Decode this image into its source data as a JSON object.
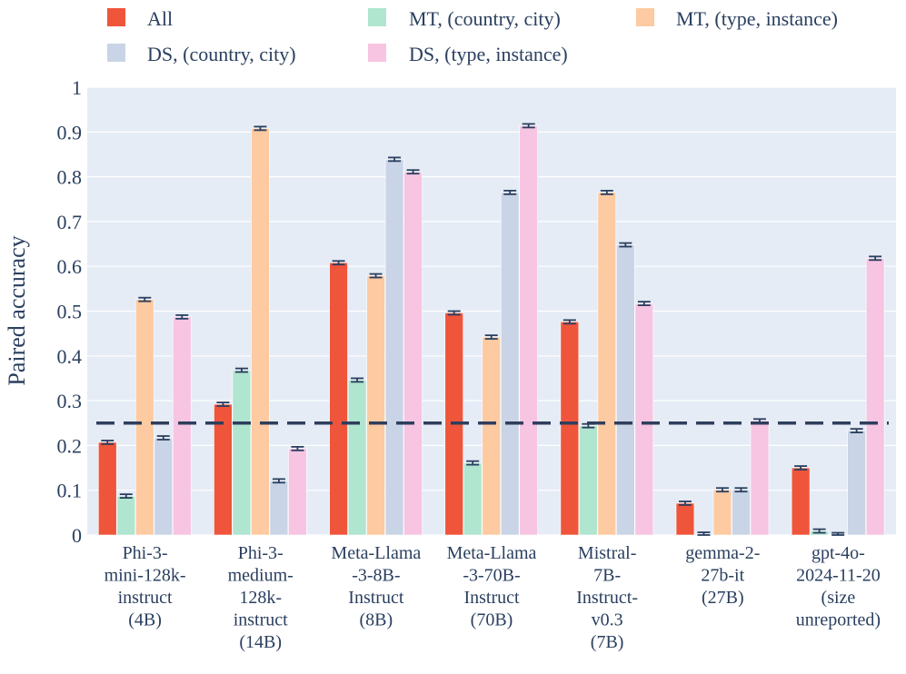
{
  "chart_data": {
    "type": "bar",
    "title": "",
    "xlabel": "",
    "ylabel": "Paired accuracy",
    "ylim": [
      0,
      1
    ],
    "yticks": [
      0,
      0.1,
      0.2,
      0.3,
      0.4,
      0.5,
      0.6,
      0.7,
      0.8,
      0.9,
      1
    ],
    "ytick_labels": [
      "0",
      "0.1",
      "0.2",
      "0.3",
      "0.4",
      "0.5",
      "0.6",
      "0.7",
      "0.8",
      "0.9",
      "1"
    ],
    "grid": true,
    "legend_position": "top",
    "reference_line": {
      "value": 0.25,
      "style": "dashed",
      "color": "#2f3e5c"
    },
    "categories": [
      [
        "Phi-3-",
        "mini-128k-",
        "instruct",
        "(4B)"
      ],
      [
        "Phi-3-",
        "medium-",
        "128k-",
        "instruct",
        "(14B)"
      ],
      [
        "Meta-Llama",
        "-3-8B-",
        "Instruct",
        "(8B)"
      ],
      [
        "Meta-Llama",
        "-3-70B-",
        "Instruct",
        "(70B)"
      ],
      [
        "Mistral-",
        "7B-",
        "Instruct-",
        "v0.3",
        "(7B)"
      ],
      [
        "gemma-2-",
        "27b-it",
        "(27B)"
      ],
      [
        "gpt-4o-",
        "2024-11-20",
        "(size",
        "unreported)"
      ]
    ],
    "series": [
      {
        "name": "All",
        "color": "#ef553b",
        "values": [
          0.207,
          0.292,
          0.608,
          0.496,
          0.476,
          0.071,
          0.15
        ]
      },
      {
        "name": "MT, (country, city)",
        "color": "#b0e5d0",
        "values": [
          0.087,
          0.368,
          0.346,
          0.161,
          0.244,
          0.002,
          0.009
        ]
      },
      {
        "name": "MT, (type, instance)",
        "color": "#fdcaa1",
        "values": [
          0.526,
          0.908,
          0.579,
          0.442,
          0.765,
          0.101,
          0.001
        ]
      },
      {
        "name": "DS, (country, city)",
        "color": "#c9d4e6",
        "values": [
          0.217,
          0.121,
          0.839,
          0.765,
          0.648,
          0.101,
          0.233
        ]
      },
      {
        "name": "DS, (type, instance)",
        "color": "#f7c4e2",
        "values": [
          0.487,
          0.193,
          0.811,
          0.914,
          0.517,
          0.255,
          0.618
        ]
      }
    ],
    "error_bar": 0.004
  }
}
